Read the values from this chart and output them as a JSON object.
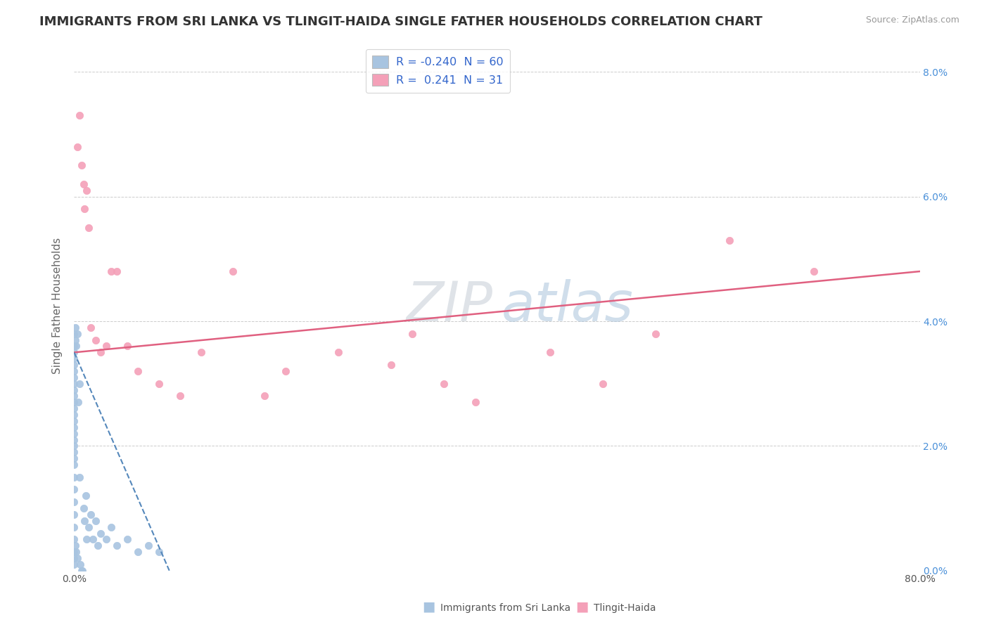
{
  "title": "IMMIGRANTS FROM SRI LANKA VS TLINGIT-HAIDA SINGLE FATHER HOUSEHOLDS CORRELATION CHART",
  "source": "Source: ZipAtlas.com",
  "ylabel": "Single Father Households",
  "sri_lanka_color": "#a8c4e0",
  "tlingit_color": "#f4a0b8",
  "sri_lanka_line_color": "#5588bb",
  "tlingit_line_color": "#e06080",
  "watermark_zip": "ZIP",
  "watermark_atlas": "atlas",
  "legend_label_1": "R = -0.240  N = 60",
  "legend_label_2": "R =  0.241  N = 31",
  "bottom_label_1": "Immigrants from Sri Lanka",
  "bottom_label_2": "Tlingit-Haida",
  "xlim": [
    0.0,
    80.0
  ],
  "ylim": [
    0.0,
    8.5
  ],
  "ytick_vals": [
    0,
    2,
    4,
    6,
    8
  ],
  "ytick_labels": [
    "0.0%",
    "2.0%",
    "4.0%",
    "6.0%",
    "8.0%"
  ],
  "xtick_vals": [
    0,
    20,
    40,
    60,
    80
  ],
  "xtick_labels": [
    "0.0%",
    "",
    "",
    "",
    "80.0%"
  ],
  "sri_lanka_x": [
    0.0,
    0.0,
    0.0,
    0.0,
    0.0,
    0.0,
    0.0,
    0.0,
    0.0,
    0.0,
    0.0,
    0.0,
    0.0,
    0.0,
    0.0,
    0.0,
    0.0,
    0.0,
    0.0,
    0.0,
    0.0,
    0.0,
    0.0,
    0.0,
    0.0,
    0.0,
    0.0,
    0.0,
    0.0,
    0.0,
    0.1,
    0.1,
    0.1,
    0.2,
    0.2,
    0.3,
    0.3,
    0.4,
    0.5,
    0.5,
    0.6,
    0.7,
    0.8,
    0.9,
    1.0,
    1.1,
    1.2,
    1.4,
    1.6,
    1.8,
    2.0,
    2.2,
    2.5,
    3.0,
    3.5,
    4.0,
    5.0,
    6.0,
    7.0,
    8.0
  ],
  "sri_lanka_y": [
    3.6,
    3.4,
    3.2,
    3.1,
    2.9,
    2.7,
    2.5,
    2.3,
    2.1,
    1.9,
    1.7,
    1.5,
    1.3,
    1.1,
    0.9,
    0.7,
    0.5,
    0.3,
    0.2,
    0.1,
    3.8,
    3.5,
    3.3,
    3.0,
    2.8,
    2.6,
    2.4,
    2.2,
    2.0,
    1.8,
    3.7,
    3.9,
    0.4,
    3.6,
    0.3,
    3.8,
    0.2,
    2.7,
    3.0,
    1.5,
    0.1,
    0.0,
    0.0,
    1.0,
    0.8,
    1.2,
    0.5,
    0.7,
    0.9,
    0.5,
    0.8,
    0.4,
    0.6,
    0.5,
    0.7,
    0.4,
    0.5,
    0.3,
    0.4,
    0.3
  ],
  "tlingit_x": [
    0.3,
    0.5,
    0.7,
    0.9,
    1.0,
    1.2,
    1.4,
    1.6,
    2.0,
    2.5,
    3.0,
    3.5,
    4.0,
    5.0,
    6.0,
    8.0,
    10.0,
    12.0,
    15.0,
    18.0,
    20.0,
    25.0,
    30.0,
    32.0,
    35.0,
    38.0,
    45.0,
    50.0,
    55.0,
    62.0,
    70.0
  ],
  "tlingit_y": [
    6.8,
    7.3,
    6.5,
    6.2,
    5.8,
    6.1,
    5.5,
    3.9,
    3.7,
    3.5,
    3.6,
    4.8,
    4.8,
    3.6,
    3.2,
    3.0,
    2.8,
    3.5,
    4.8,
    2.8,
    3.2,
    3.5,
    3.3,
    3.8,
    3.0,
    2.7,
    3.5,
    3.0,
    3.8,
    5.3,
    4.8
  ],
  "tlingit_line_x0": 0.0,
  "tlingit_line_y0": 3.5,
  "tlingit_line_x1": 80.0,
  "tlingit_line_y1": 4.8,
  "sri_line_x0": 0.0,
  "sri_line_y0": 3.5,
  "sri_line_x1": 9.0,
  "sri_line_y1": 0.0
}
